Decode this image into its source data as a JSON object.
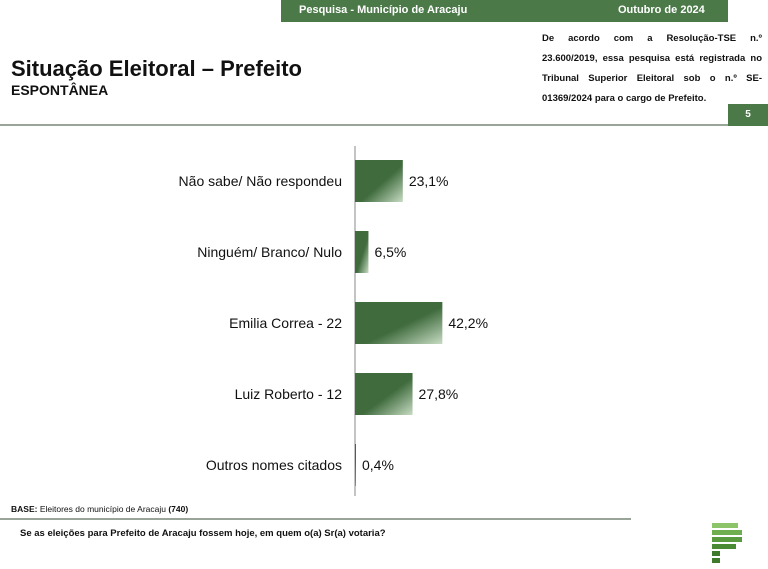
{
  "header": {
    "survey": "Pesquisa - Município de Aracaju",
    "date": "Outubro de 2024",
    "title": "Situação Eleitoral – Prefeito",
    "subtitle": "ESPONTÂNEA",
    "legal": "De acordo com a Resolução-TSE n.º 23.600/2019, essa pesquisa está registrada no Tribunal Superior Eleitoral sob o n.º SE-01369/2024 para o cargo de Prefeito.",
    "page_number": "5"
  },
  "footer": {
    "base_label": "BASE:",
    "base_text": " Eleitores do município de Aracaju ",
    "base_count": "(740)",
    "question": "Se as eleições para Prefeito de Aracaju fossem hoje, em quem o(a) Sr(a) votaria?"
  },
  "colors": {
    "bar_dark": "#3f6b3d",
    "bar_light": "#c7dcc3",
    "header_green": "#4b7a48"
  },
  "chart_data": {
    "type": "bar",
    "orientation": "horizontal",
    "title": "",
    "xlabel": "",
    "ylabel": "",
    "categories": [
      "Não sabe/ Não respondeu",
      "Ninguém/ Branco/ Nulo",
      "Emilia Correa - 22",
      "Luiz Roberto - 12",
      "Outros nomes citados"
    ],
    "values": [
      23.1,
      6.5,
      42.2,
      27.8,
      0.4
    ],
    "labels": [
      "23,1%",
      "6,5%",
      "42,2%",
      "27,8%",
      "0,4%"
    ],
    "unit": "%",
    "xlim": [
      0,
      100
    ],
    "grid": false,
    "legend": "none"
  }
}
